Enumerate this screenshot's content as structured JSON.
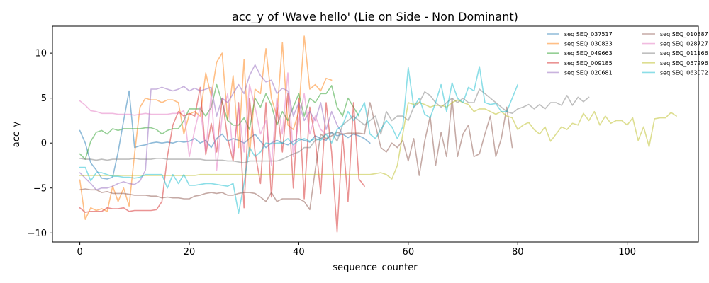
{
  "chart_data": {
    "type": "line",
    "title": "acc_y of 'Wave hello' (Lie on Side - Non Dominant)",
    "xlabel": "sequence_counter",
    "ylabel": "acc_y",
    "xlim": [
      -5,
      113
    ],
    "ylim": [
      -11,
      13
    ],
    "xticks": [
      0,
      20,
      40,
      60,
      80,
      100
    ],
    "yticks": [
      -10,
      -5,
      0,
      5,
      10
    ],
    "grid": false,
    "legend_position": "upper-right",
    "series": [
      {
        "name": "seq SEQ_037517",
        "color": "#1f77b4",
        "x_start": 0,
        "values": [
          1.4,
          0.0,
          -2.2,
          -3.0,
          -3.9,
          -4.0,
          -3.8,
          -1.0,
          2.5,
          5.8,
          -0.5,
          -0.3,
          -0.2,
          0.0,
          0.1,
          0.0,
          0.1,
          0.0,
          0.2,
          0.1,
          0.2,
          0.5,
          0.0,
          0.3,
          -0.5,
          0.5,
          1.0,
          0.2,
          0.5,
          0.3,
          0.0,
          0.5,
          1.0,
          0.2,
          -0.5,
          0.0,
          0.3,
          0.0,
          -0.2,
          0.2,
          0.5,
          0.3,
          0.1,
          0.8,
          0.5,
          0.3,
          1.2,
          0.8,
          1.0,
          0.6,
          1.0,
          0.8,
          0.5,
          0.0
        ]
      },
      {
        "name": "seq SEQ_030833",
        "color": "#ff7f0e",
        "x_start": 0,
        "values": [
          -4.1,
          -8.5,
          -7.2,
          -7.5,
          -7.3,
          -7.6,
          -4.8,
          -6.5,
          -5.0,
          -7.0,
          -1.2,
          4.0,
          5.0,
          4.8,
          4.8,
          4.5,
          4.8,
          4.8,
          4.5,
          1.0,
          3.2,
          3.5,
          3.0,
          7.8,
          5.2,
          9.0,
          10.0,
          2.5,
          7.5,
          -0.5,
          9.3,
          -1.5,
          6.0,
          5.5,
          10.5,
          5.0,
          3.0,
          11.2,
          2.0,
          1.5,
          3.5,
          11.9,
          6.0,
          6.5,
          5.8,
          7.2,
          7.0
        ]
      },
      {
        "name": "seq SEQ_049663",
        "color": "#2ca02c",
        "x_start": 0,
        "values": [
          -1.2,
          -1.8,
          0.2,
          1.2,
          1.4,
          1.0,
          1.6,
          1.4,
          1.6,
          1.6,
          1.6,
          1.6,
          1.7,
          1.7,
          1.5,
          1.0,
          1.4,
          1.6,
          1.6,
          2.5,
          3.8,
          3.8,
          3.8,
          3.0,
          4.0,
          6.5,
          4.5,
          2.5,
          2.0,
          2.0,
          2.8,
          1.5,
          5.0,
          4.0,
          5.5,
          4.2,
          2.0,
          3.5,
          2.5,
          4.0,
          5.5,
          3.0,
          5.0,
          4.5,
          5.5,
          5.5,
          6.4,
          4.0,
          3.0,
          5.0,
          4.0,
          3.0
        ]
      },
      {
        "name": "seq SEQ_009185",
        "color": "#d62728",
        "x_start": 0,
        "values": [
          -7.2,
          -7.7,
          -7.6,
          -7.6,
          -7.6,
          -7.2,
          -7.3,
          -7.3,
          -7.2,
          -7.6,
          -7.5,
          -7.5,
          -7.5,
          -7.5,
          -7.4,
          -6.5,
          -1.5,
          2.0,
          3.5,
          3.0,
          3.3,
          3.0,
          6.2,
          -1.3,
          2.2,
          -1.0,
          5.0,
          0.5,
          -2.0,
          4.5,
          -7.2,
          5.0,
          -1.0,
          -4.5,
          4.5,
          -6.0,
          4.0,
          -1.0,
          5.5,
          -5.0,
          5.0,
          -6.2,
          4.0,
          0.5,
          -5.6,
          4.5,
          -1.0,
          -9.9,
          1.0,
          -6.5,
          4.5,
          -4.0,
          -4.8
        ]
      },
      {
        "name": "seq SEQ_020681",
        "color": "#9467bd",
        "x_start": 0,
        "values": [
          -3.3,
          -3.9,
          -4.5,
          -5.2,
          -5.0,
          -5.0,
          -4.8,
          -4.5,
          -4.3,
          -4.5,
          -4.6,
          -4.2,
          -3.0,
          6.0,
          6.0,
          6.2,
          6.0,
          5.8,
          6.0,
          6.3,
          5.8,
          6.1,
          5.8,
          6.0,
          6.2,
          3.0,
          5.0,
          4.5,
          5.5,
          6.5,
          5.5,
          7.5,
          8.7,
          7.5,
          6.8,
          7.0,
          5.5,
          6.1,
          5.8,
          3.0,
          4.5,
          2.5,
          3.5,
          2.5,
          4.5,
          1.5,
          3.5,
          2.0,
          1.0
        ]
      },
      {
        "name": "seq SEQ_010887",
        "color": "#8c564b",
        "x_start": 0,
        "values": [
          -5.2,
          -5.1,
          -5.2,
          -5.2,
          -5.5,
          -5.4,
          -5.6,
          -5.6,
          -5.6,
          -5.7,
          -5.8,
          -5.8,
          -5.8,
          -5.9,
          -5.9,
          -6.1,
          -6.0,
          -6.1,
          -6.1,
          -6.2,
          -6.2,
          -5.9,
          -5.8,
          -5.6,
          -5.5,
          -5.6,
          -5.5,
          -5.8,
          -5.8,
          -5.6,
          -5.5,
          -5.5,
          -5.6,
          -6.0,
          -6.5,
          -5.5,
          -6.5,
          -6.2,
          -6.2,
          -6.2,
          -6.2,
          -6.5,
          -7.4,
          -3.0,
          1.0,
          0.5,
          0.8,
          1.2,
          1.0,
          1.1,
          1.1,
          1.1,
          1.0,
          4.5,
          2.0,
          -0.5,
          -1.0,
          0.0,
          -0.5,
          0.3,
          -2.0,
          0.5,
          -3.6,
          0.2,
          3.0,
          -2.5,
          1.2,
          -1.5,
          5.0,
          -1.5,
          1.0,
          2.0,
          -1.5,
          -1.2,
          1.0,
          3.0,
          -1.5,
          0.5,
          4.0,
          -0.5
        ]
      },
      {
        "name": "seq SEQ_028727",
        "color": "#e377c2",
        "x_start": 0,
        "values": [
          4.7,
          4.2,
          3.6,
          3.5,
          3.3,
          3.3,
          3.3,
          3.2,
          3.2,
          3.2,
          3.1,
          3.2,
          3.3,
          3.2,
          3.2,
          3.2,
          3.2,
          3.3,
          3.3,
          3.6,
          -1.5,
          1.5,
          4.0,
          -1.0,
          5.5,
          -3.0,
          3.0,
          5.5,
          -1.5,
          4.0,
          -1.0,
          6.5,
          4.0,
          1.0,
          2.5,
          -2.5,
          5.0,
          1.0,
          7.8,
          -1.5,
          2.5,
          5.5,
          1.0,
          3.0,
          1.5,
          1.0
        ]
      },
      {
        "name": "seq SEQ_011166",
        "color": "#7f7f7f",
        "x_start": 0,
        "values": [
          -1.7,
          -1.8,
          -1.8,
          -1.9,
          -1.8,
          -1.9,
          -1.8,
          -1.8,
          -1.8,
          -1.8,
          -1.7,
          -1.8,
          -1.8,
          -1.8,
          -1.7,
          -1.7,
          -1.8,
          -1.8,
          -1.8,
          -1.8,
          -1.8,
          -1.8,
          -1.8,
          -1.9,
          -1.9,
          -1.9,
          -1.9,
          -2.0,
          -2.0,
          -2.1,
          -2.2,
          -2.0,
          -2.0,
          -2.0,
          -2.0,
          -2.0,
          -2.0,
          -1.8,
          -1.5,
          -1.2,
          -1.0,
          -0.5,
          -0.5,
          0.3,
          0.5,
          1.0,
          1.2,
          0.2,
          2.0,
          2.5,
          3.0,
          2.5,
          2.0,
          2.5,
          3.0,
          1.0,
          3.5,
          2.5,
          3.0,
          3.0,
          2.5,
          4.0,
          4.5,
          5.7,
          5.3,
          4.5,
          4.0,
          4.5,
          5.0,
          4.5,
          5.0,
          4.5,
          4.5,
          6.0,
          5.5,
          5.0,
          4.5,
          4.0,
          3.5,
          3.3,
          3.8,
          4.0,
          4.3,
          3.8,
          4.3,
          3.8,
          4.5,
          4.5,
          4.2,
          5.3,
          4.2,
          5.1,
          4.6,
          5.1
        ]
      },
      {
        "name": "seq SEQ_057296",
        "color": "#bcbd22",
        "x_start": 0,
        "values": [
          -3.6,
          -3.6,
          -3.6,
          -3.6,
          -3.6,
          -3.6,
          -3.6,
          -3.6,
          -3.6,
          -3.6,
          -3.6,
          -3.6,
          -3.6,
          -3.6,
          -3.6,
          -3.6,
          -3.6,
          -3.6,
          -3.6,
          -3.6,
          -3.6,
          -3.6,
          -3.5,
          -3.5,
          -3.5,
          -3.5,
          -3.5,
          -3.5,
          -3.5,
          -3.5,
          -3.5,
          -3.5,
          -3.5,
          -3.5,
          -3.5,
          -3.5,
          -3.5,
          -3.5,
          -3.5,
          -3.5,
          -3.5,
          -3.5,
          -3.5,
          -3.5,
          -3.5,
          -3.5,
          -3.5,
          -3.5,
          -3.5,
          -3.5,
          -3.5,
          -3.5,
          -3.5,
          -3.5,
          -3.4,
          -3.3,
          -3.5,
          -4.0,
          -2.5,
          1.0,
          4.5,
          4.3,
          4.5,
          4.3,
          4.0,
          4.2,
          4.2,
          4.0,
          4.5,
          4.8,
          4.5,
          4.3,
          3.5,
          3.8,
          3.8,
          3.5,
          3.2,
          3.5,
          3.0,
          2.8,
          1.5,
          2.0,
          2.3,
          1.5,
          1.0,
          1.8,
          0.2,
          1.0,
          1.8,
          1.5,
          2.2,
          2.0,
          3.3,
          2.5,
          3.5,
          2.0,
          3.0,
          2.2,
          2.5,
          2.5,
          2.0,
          2.8,
          0.3,
          1.8,
          -0.4,
          2.7,
          2.8,
          2.8,
          3.4,
          3.0
        ]
      },
      {
        "name": "seq SEQ_063072",
        "color": "#17becf",
        "x_start": 0,
        "values": [
          -2.7,
          -2.7,
          -4.2,
          -3.3,
          -3.3,
          -3.5,
          -3.7,
          -3.7,
          -3.8,
          -3.8,
          -3.9,
          -3.8,
          -3.5,
          -3.5,
          -3.5,
          -3.5,
          -5.0,
          -3.5,
          -4.5,
          -3.5,
          -4.7,
          -4.7,
          -4.6,
          -4.5,
          -4.5,
          -4.6,
          -4.7,
          -4.8,
          -4.5,
          -7.8,
          -4.5,
          -0.5,
          -1.5,
          -1.0,
          0.0,
          -0.1,
          0.0,
          0.0,
          0.5,
          -0.2,
          0.3,
          0.5,
          0.2,
          0.5,
          0.3,
          1.0,
          0.0,
          1.5,
          2.0,
          3.5,
          2.5,
          3.3,
          4.5,
          1.0,
          0.5,
          1.5,
          2.5,
          1.8,
          0.5,
          1.8,
          8.4,
          4.0,
          5.0,
          3.2,
          2.8,
          4.5,
          6.5,
          3.5,
          6.7,
          5.0,
          4.5,
          6.2,
          5.8,
          8.5,
          4.5,
          4.3,
          4.4,
          3.5,
          3.5,
          5.0,
          6.5
        ]
      }
    ]
  }
}
